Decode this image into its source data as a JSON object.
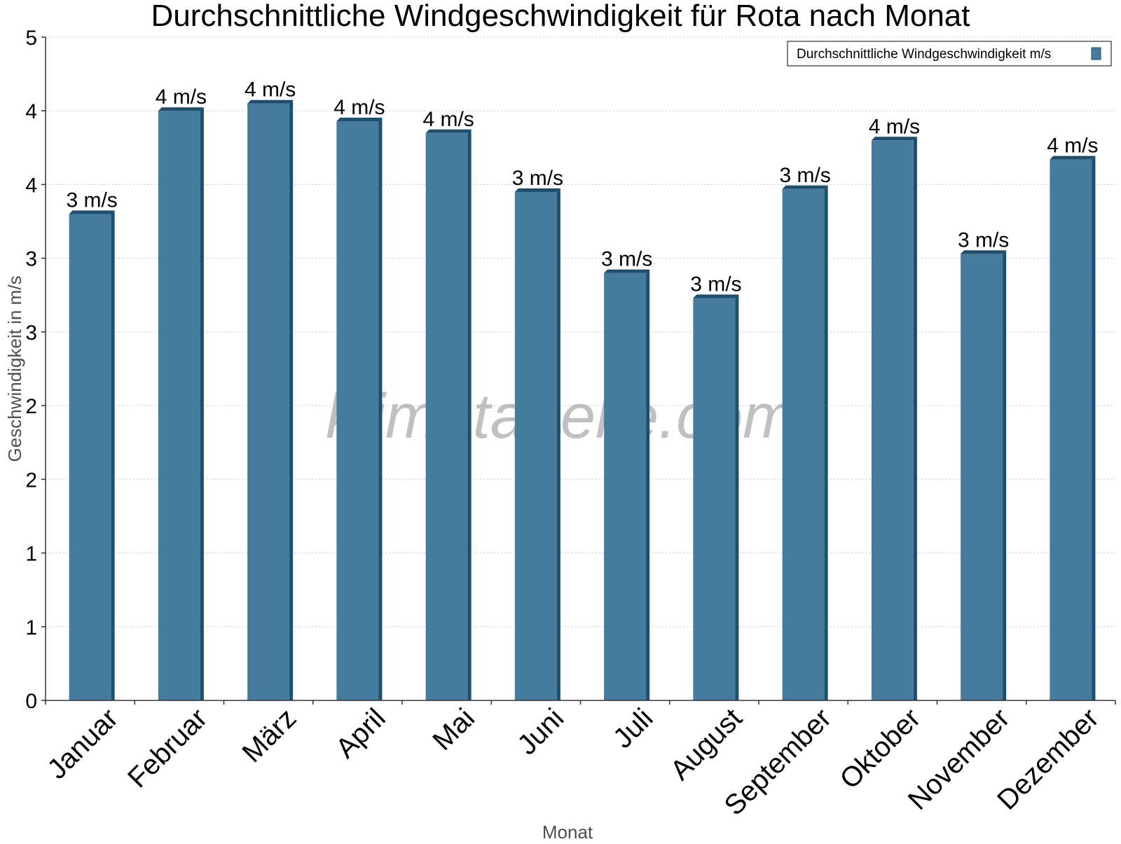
{
  "chart_data": {
    "type": "bar",
    "title": "Durchschnittliche Windgeschwindigkeit für Rota nach Monat",
    "xlabel": "Monat",
    "ylabel": "Geschwindigkeit in m/s",
    "categories": [
      "Januar",
      "Februar",
      "März",
      "April",
      "Mai",
      "Juni",
      "Juli",
      "August",
      "September",
      "Oktober",
      "November",
      "Dezember"
    ],
    "series": [
      {
        "name": "Durchschnittliche Windgeschwindigkeit m/s",
        "values": [
          3.3,
          4.0,
          4.05,
          3.93,
          3.85,
          3.45,
          2.9,
          2.73,
          3.47,
          3.8,
          3.03,
          3.67
        ],
        "data_labels": [
          "3 m/s",
          "4 m/s",
          "4 m/s",
          "4 m/s",
          "4 m/s",
          "3 m/s",
          "3 m/s",
          "3 m/s",
          "3 m/s",
          "4 m/s",
          "3 m/s",
          "4 m/s"
        ]
      }
    ],
    "ylim": [
      0,
      4.5
    ],
    "yticks": [
      0,
      0.5,
      1,
      1.5,
      2,
      2.5,
      3,
      3.5,
      4,
      4.5
    ],
    "ytick_labels": [
      "0",
      "1",
      "1",
      "2",
      "2",
      "3",
      "3",
      "4",
      "4",
      "5"
    ],
    "grid": true,
    "legend_position": "top-right",
    "bar_color": "#457b9d",
    "bar_side_color": "#1d4e6e",
    "watermark": "klimatabelle.com"
  }
}
